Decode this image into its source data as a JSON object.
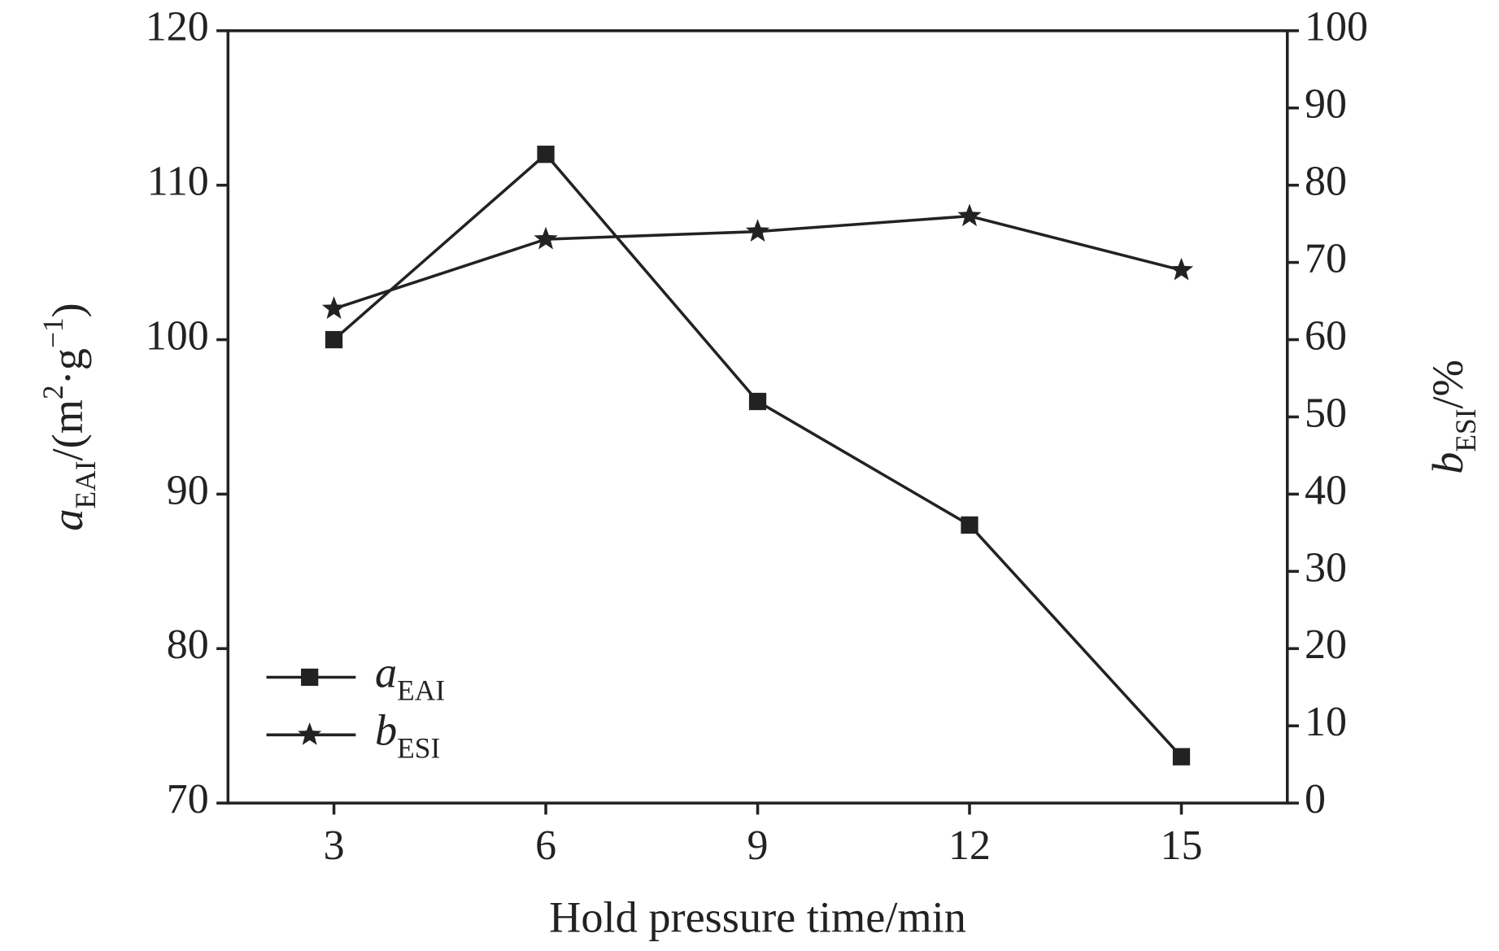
{
  "chart_data": {
    "type": "line",
    "xlabel": [
      {
        "text": "Hold pressure time/min"
      }
    ],
    "ylabel": [
      {
        "text": "a",
        "style": "italic"
      },
      {
        "text": "EAI",
        "style": "sub"
      },
      {
        "text": "/(m"
      },
      {
        "text": "2",
        "style": "sup"
      },
      {
        "text": "·g"
      },
      {
        "text": "−1",
        "style": "sup"
      },
      {
        "text": ")"
      }
    ],
    "y2label": [
      {
        "text": "b",
        "style": "italic"
      },
      {
        "text": "ESI",
        "style": "sub"
      },
      {
        "text": "/%"
      }
    ],
    "x": [
      3,
      6,
      9,
      12,
      15
    ],
    "xlim": [
      1.5,
      16.5
    ],
    "xticks": [
      3,
      6,
      9,
      12,
      15
    ],
    "ylim": [
      70,
      120
    ],
    "yticks": [
      70,
      80,
      90,
      100,
      110,
      120
    ],
    "y2lim": [
      0,
      100
    ],
    "y2ticks": [
      0,
      10,
      20,
      30,
      40,
      50,
      60,
      70,
      80,
      90,
      100
    ],
    "legend": "lower left",
    "series": [
      {
        "name": "a",
        "name_sub": "EAI",
        "color": "#222222",
        "marker": "square",
        "values": [
          100,
          112,
          96,
          88,
          73
        ]
      },
      {
        "name": "b",
        "name_sub": "ESI",
        "color": "#222222",
        "marker": "star",
        "axis": "y2",
        "values": [
          64,
          73,
          74,
          76,
          69
        ]
      }
    ]
  }
}
